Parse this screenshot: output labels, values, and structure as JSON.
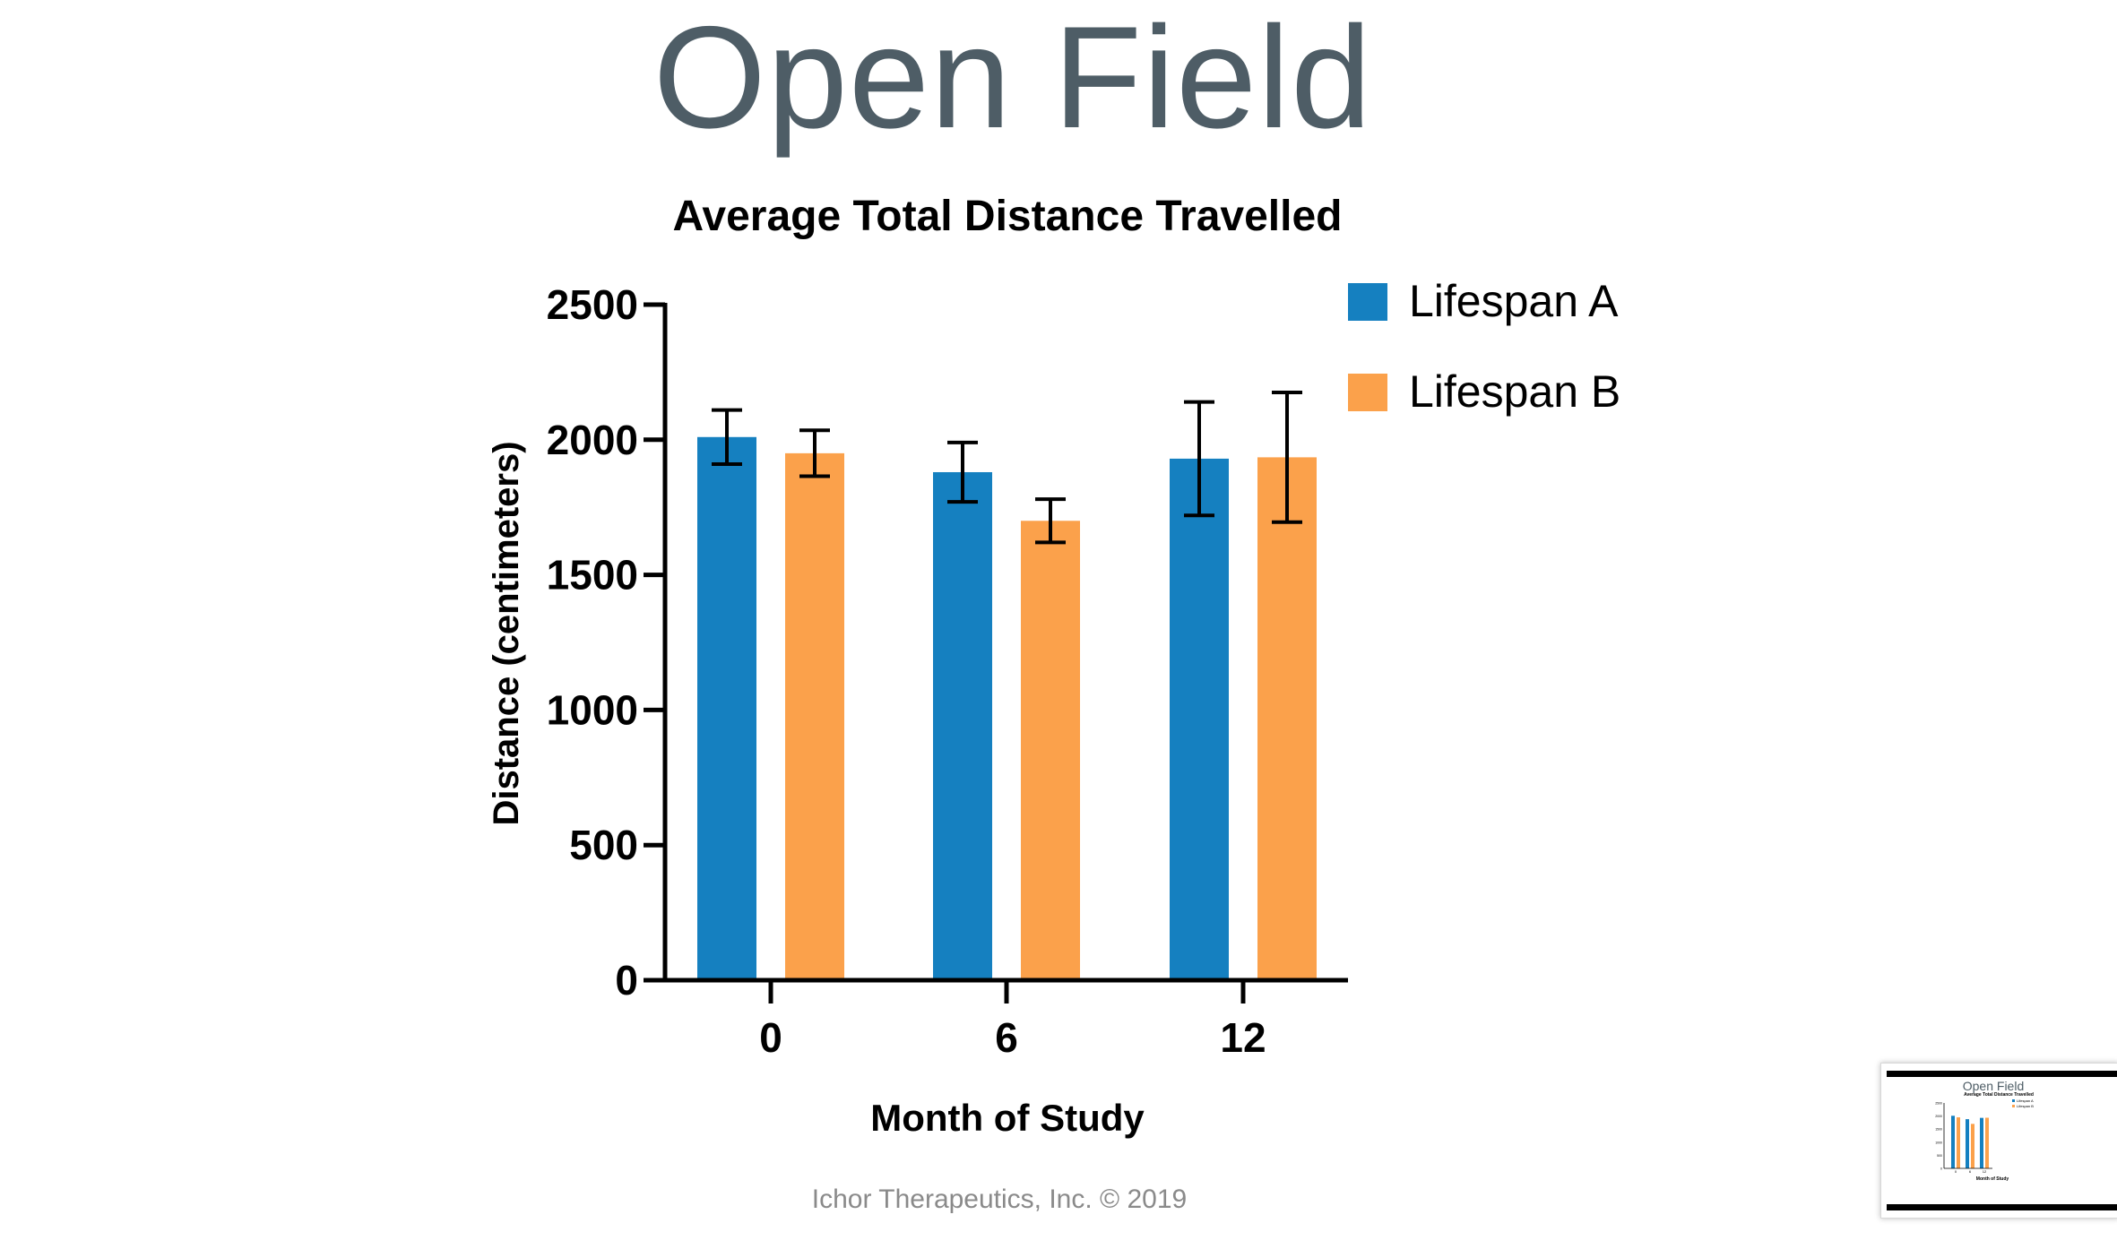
{
  "slide": {
    "title": "Open Field",
    "footer": "Ichor Therapeutics, Inc. © 2019"
  },
  "chart_data": {
    "type": "bar",
    "title": "Average Total Distance Travelled",
    "xlabel": "Month of Study",
    "ylabel": "Distance (centimeters)",
    "categories": [
      "0",
      "6",
      "12"
    ],
    "ylim": [
      0,
      2500
    ],
    "yticks": [
      0,
      500,
      1000,
      1500,
      2000,
      2500
    ],
    "legend_position": "top-right",
    "grid": false,
    "series": [
      {
        "name": "Lifespan A",
        "color": "#1580c0",
        "values": [
          2010,
          1880,
          1930
        ],
        "error": [
          100,
          110,
          210
        ]
      },
      {
        "name": "Lifespan B",
        "color": "#fba14b",
        "values": [
          1950,
          1700,
          1935
        ],
        "error": [
          85,
          80,
          240
        ]
      }
    ]
  },
  "thumbnail": {
    "title": "Open Field",
    "chart_title": "Average Total Distance Travelled",
    "xlabel": "Month of Study"
  }
}
